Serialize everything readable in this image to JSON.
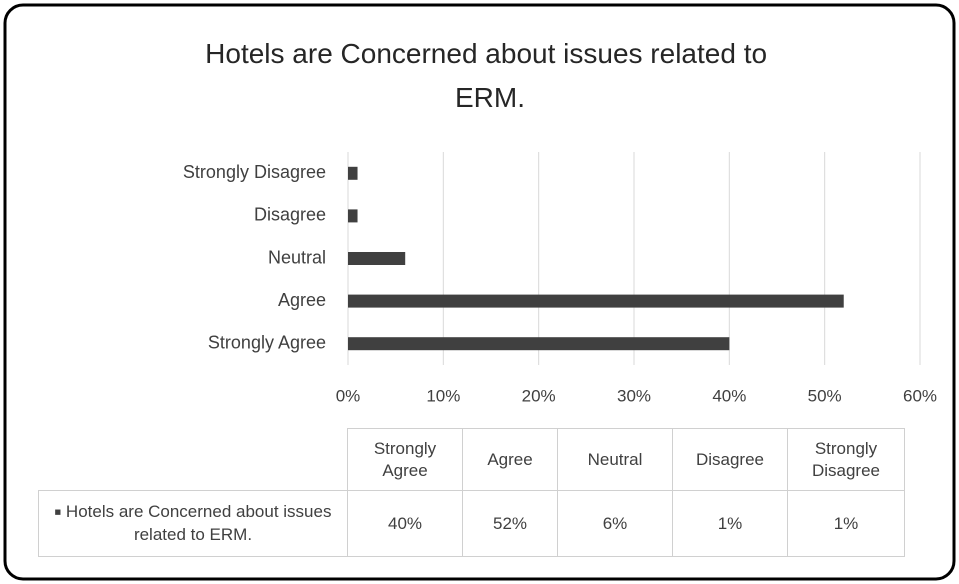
{
  "chart_data": {
    "type": "bar",
    "orientation": "horizontal",
    "title": "Hotels are Concerned about issues related to ERM.",
    "categories": [
      "Strongly Agree",
      "Agree",
      "Neutral",
      "Disagree",
      "Strongly Disagree"
    ],
    "series": [
      {
        "name": "Hotels are Concerned about issues related to ERM.",
        "color": "#404040",
        "values": [
          40,
          52,
          6,
          1,
          1
        ],
        "value_labels": [
          "40%",
          "52%",
          "6%",
          "1%",
          "1%"
        ]
      }
    ],
    "xlim": [
      0,
      60
    ],
    "xticks": [
      {
        "value": 0,
        "label": "0%"
      },
      {
        "value": 10,
        "label": "10%"
      },
      {
        "value": 20,
        "label": "20%"
      },
      {
        "value": 30,
        "label": "30%"
      },
      {
        "value": 40,
        "label": "40%"
      },
      {
        "value": 50,
        "label": "50%"
      },
      {
        "value": 60,
        "label": "60%"
      }
    ],
    "grid": true
  }
}
